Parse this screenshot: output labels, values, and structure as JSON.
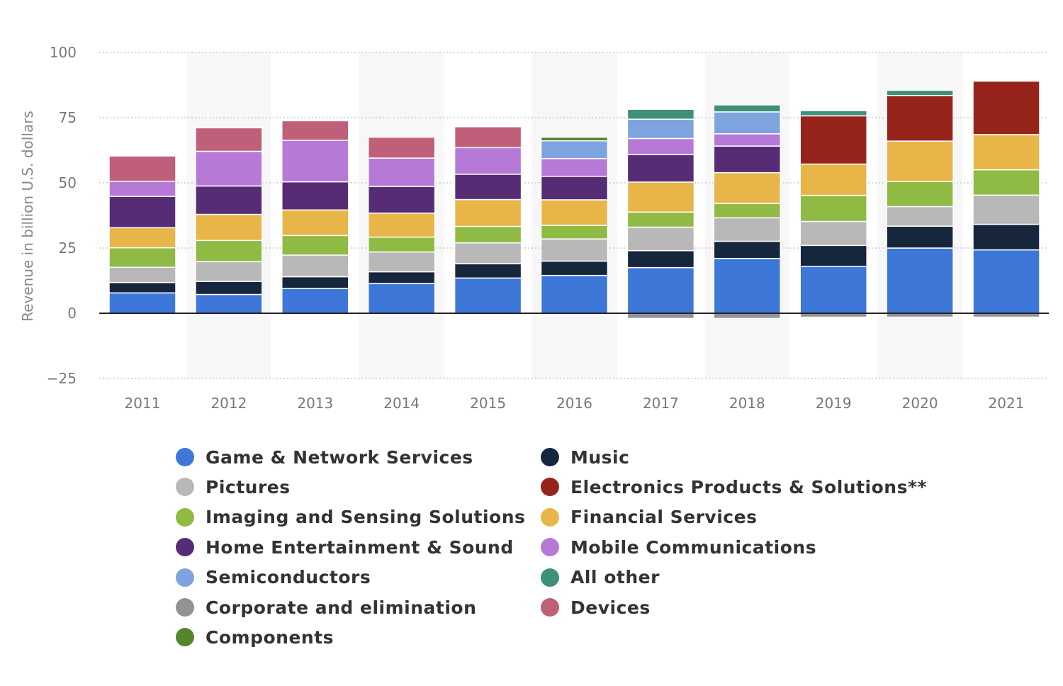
{
  "chart_data": {
    "type": "bar",
    "stacked": true,
    "ylabel": "Revenue in billion U.S. dollars",
    "ylim": [
      -25,
      100
    ],
    "yticks": [
      -25,
      0,
      25,
      50,
      75,
      100
    ],
    "grid": true,
    "categories": [
      "2011",
      "2012",
      "2013",
      "2014",
      "2015",
      "2016",
      "2017",
      "2018",
      "2019",
      "2020",
      "2021"
    ],
    "series": [
      {
        "name": "Game & Network Services",
        "color": "#3d78d8",
        "values": [
          7.8,
          7.2,
          9.5,
          11.4,
          13.5,
          14.5,
          17.5,
          21.0,
          18.0,
          25.0,
          24.3
        ]
      },
      {
        "name": "Music",
        "color": "#16263c",
        "values": [
          4.0,
          5.0,
          4.5,
          4.5,
          5.5,
          5.5,
          6.5,
          6.6,
          8.0,
          8.4,
          9.8
        ]
      },
      {
        "name": "Pictures",
        "color": "#b8b8b8",
        "values": [
          5.8,
          7.6,
          8.3,
          7.6,
          8.0,
          8.5,
          9.0,
          9.0,
          9.2,
          7.5,
          11.2
        ]
      },
      {
        "name": "Imaging and Sensing Solutions",
        "color": "#8fba44",
        "values": [
          7.5,
          8.1,
          7.5,
          5.7,
          6.3,
          5.2,
          5.8,
          5.5,
          10.0,
          9.6,
          9.7
        ]
      },
      {
        "name": "Financial Services",
        "color": "#e8b548",
        "values": [
          7.7,
          10.0,
          9.8,
          9.2,
          10.3,
          9.8,
          11.5,
          11.8,
          12.0,
          15.5,
          13.5
        ]
      },
      {
        "name": "Home Entertainment & Sound",
        "color": "#562d75",
        "values": [
          12.0,
          10.9,
          10.8,
          10.2,
          9.7,
          9.0,
          10.5,
          10.2,
          0,
          0,
          0
        ]
      },
      {
        "name": "Mobile Communications",
        "color": "#b67ad6",
        "values": [
          5.8,
          13.3,
          15.9,
          10.9,
          10.2,
          6.8,
          6.2,
          4.7,
          0,
          0,
          0
        ]
      },
      {
        "name": "Semiconductors",
        "color": "#7ea4e0",
        "values": [
          0,
          0,
          0,
          0,
          0,
          6.8,
          7.4,
          8.4,
          0,
          0,
          0
        ]
      },
      {
        "name": "Components",
        "color": "#55862c",
        "values": [
          0,
          0,
          0,
          0,
          0,
          1.4,
          0,
          0,
          0,
          0,
          0
        ]
      },
      {
        "name": "Electronics Products & Solutions**",
        "color": "#97241b",
        "values": [
          0,
          0,
          0,
          0,
          0,
          0,
          0,
          0,
          18.5,
          17.5,
          20.5
        ]
      },
      {
        "name": "All other",
        "color": "#3e9178",
        "values": [
          0,
          0,
          0,
          0,
          0,
          0,
          3.8,
          2.7,
          2.0,
          2.0,
          0
        ]
      },
      {
        "name": "Devices",
        "color": "#bf5f79",
        "values": [
          9.7,
          9.0,
          7.5,
          8.0,
          8.0,
          0,
          0,
          0,
          0,
          0,
          0
        ]
      },
      {
        "name": "Corporate and elimination",
        "color": "#939393",
        "values": [
          0,
          0,
          0,
          0,
          0,
          0,
          -2.0,
          -2.0,
          -1.5,
          -1.5,
          -1.5
        ]
      }
    ],
    "legend": {
      "columns": [
        [
          "Game & Network Services",
          "Pictures",
          "Imaging and Sensing Solutions",
          "Home Entertainment & Sound",
          "Semiconductors",
          "Corporate and elimination",
          "Components"
        ],
        [
          "Music",
          "Electronics Products & Solutions**",
          "Financial Services",
          "Mobile Communications",
          "All other",
          "Devices"
        ]
      ]
    }
  }
}
